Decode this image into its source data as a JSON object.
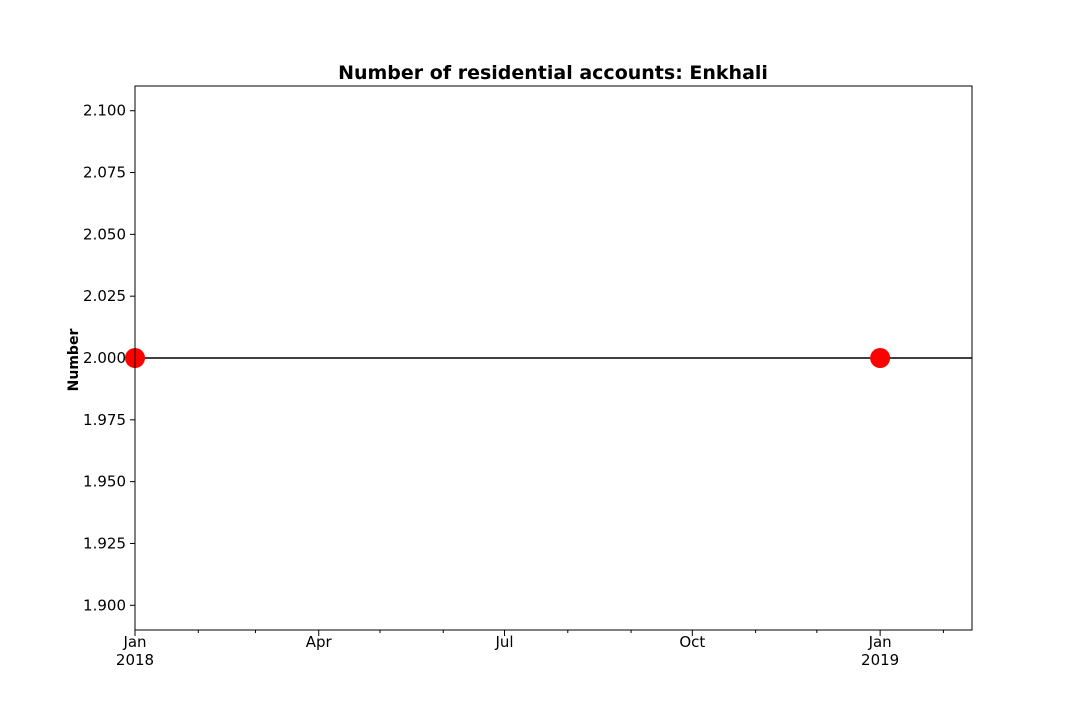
{
  "chart_data": {
    "type": "line",
    "title": "Number of residential accounts: Enkhali",
    "xlabel": "",
    "ylabel": "Number",
    "x_axis": {
      "min": "2018-01-01",
      "max": "2019-02-15",
      "major_ticks": [
        {
          "date": "2018-01-01",
          "label": "Jan",
          "sublabel": "2018"
        },
        {
          "date": "2018-04-01",
          "label": "Apr",
          "sublabel": ""
        },
        {
          "date": "2018-07-01",
          "label": "Jul",
          "sublabel": ""
        },
        {
          "date": "2018-10-01",
          "label": "Oct",
          "sublabel": ""
        },
        {
          "date": "2019-01-01",
          "label": "Jan",
          "sublabel": "2019"
        }
      ],
      "minor_ticks": [
        "2018-02-01",
        "2018-03-01",
        "2018-05-01",
        "2018-06-01",
        "2018-08-01",
        "2018-09-01",
        "2018-11-01",
        "2018-12-01",
        "2019-02-01"
      ]
    },
    "ylim": [
      1.89,
      2.11
    ],
    "yticks": [
      "1.900",
      "1.925",
      "1.950",
      "1.975",
      "2.000",
      "2.025",
      "2.050",
      "2.075",
      "2.100"
    ],
    "series": [
      {
        "line_color": "#000000",
        "marker_color": "#ff0000",
        "points": [
          {
            "x": "2018-01-01",
            "y": 2.0
          },
          {
            "x": "2019-01-01",
            "y": 2.0
          }
        ]
      }
    ],
    "grid": false
  }
}
